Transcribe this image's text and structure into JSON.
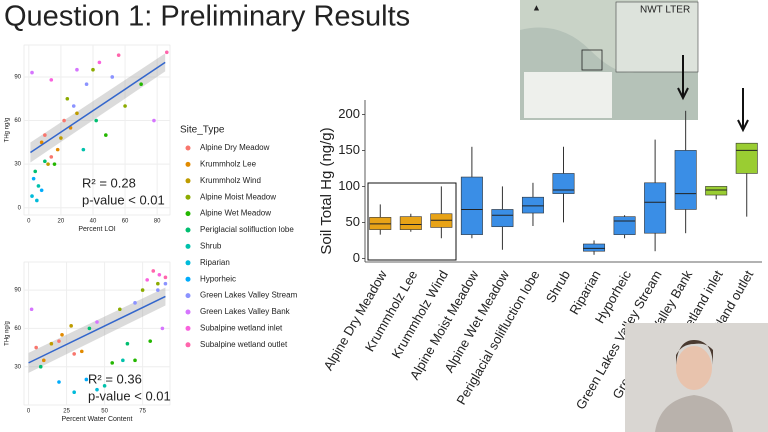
{
  "title": "Question 1: Preliminary Results",
  "map_title": "NWT LTER",
  "chart_data": [
    {
      "type": "scatter",
      "xlabel": "Percent LOI",
      "ylabel": "THg ng/g",
      "xlim": [
        -3,
        88
      ],
      "xticks": [
        0,
        20,
        40,
        60,
        80
      ],
      "ylim": [
        -5,
        112
      ],
      "yticks": [
        0,
        30,
        60,
        90
      ],
      "annotations": [
        "R² = 0.28",
        "p-value < 0.01"
      ],
      "fit": {
        "x": [
          1,
          85
        ],
        "y": [
          38,
          100
        ]
      },
      "fit_color": "#3366cc",
      "legend_title": "Site_Type",
      "series": [
        {
          "name": "Alpine Dry Meadow",
          "color": "#f8766d",
          "x": [
            10,
            14,
            22
          ],
          "y": [
            50,
            35,
            60
          ]
        },
        {
          "name": "Krummholz Lee",
          "color": "#e18a00",
          "x": [
            8,
            18,
            26
          ],
          "y": [
            45,
            40,
            55
          ]
        },
        {
          "name": "Krummholz Wind",
          "color": "#be9c00",
          "x": [
            12,
            20,
            30
          ],
          "y": [
            30,
            48,
            65
          ]
        },
        {
          "name": "Alpine Moist Meadow",
          "color": "#8cab00",
          "x": [
            24,
            40,
            60
          ],
          "y": [
            75,
            95,
            70
          ]
        },
        {
          "name": "Alpine Wet Meadow",
          "color": "#24b700",
          "x": [
            16,
            48,
            70
          ],
          "y": [
            30,
            50,
            85
          ]
        },
        {
          "name": "Periglacial solifluction lobe",
          "color": "#00be70",
          "x": [
            4,
            10,
            42
          ],
          "y": [
            25,
            32,
            60
          ]
        },
        {
          "name": "Shrub",
          "color": "#00c1ab",
          "x": [
            6,
            34
          ],
          "y": [
            15,
            40
          ]
        },
        {
          "name": "Riparian",
          "color": "#00bbda",
          "x": [
            2,
            5
          ],
          "y": [
            8,
            5
          ]
        },
        {
          "name": "Hyporheic",
          "color": "#00acfc",
          "x": [
            3,
            8
          ],
          "y": [
            20,
            12
          ]
        },
        {
          "name": "Green Lakes Valley Stream",
          "color": "#8b93ff",
          "x": [
            28,
            36,
            52
          ],
          "y": [
            70,
            85,
            90
          ]
        },
        {
          "name": "Green Lakes Valley Bank",
          "color": "#d575fe",
          "x": [
            2,
            30,
            78
          ],
          "y": [
            93,
            95,
            60
          ]
        },
        {
          "name": "Subalpine wetland inlet",
          "color": "#f962dd",
          "x": [
            14,
            44
          ],
          "y": [
            88,
            100
          ]
        },
        {
          "name": "Subalpine wetland outlet",
          "color": "#ff65ac",
          "x": [
            56,
            86
          ],
          "y": [
            105,
            107
          ]
        }
      ]
    },
    {
      "type": "scatter",
      "xlabel": "Percent Water Content",
      "ylabel": "THg ng/g",
      "xlim": [
        -3,
        93
      ],
      "xticks": [
        0,
        25,
        50,
        75
      ],
      "ylim": [
        0,
        112
      ],
      "yticks": [
        30,
        60,
        90
      ],
      "annotations": [
        "R² = 0.36",
        "p-value < 0.01"
      ],
      "fit": {
        "x": [
          0,
          90
        ],
        "y": [
          33,
          85
        ]
      },
      "fit_color": "#3366cc",
      "series": [
        {
          "color": "#f8766d",
          "x": [
            5,
            20,
            30
          ],
          "y": [
            45,
            50,
            40
          ]
        },
        {
          "color": "#e18a00",
          "x": [
            10,
            22,
            35
          ],
          "y": [
            35,
            55,
            42
          ]
        },
        {
          "color": "#be9c00",
          "x": [
            15,
            28
          ],
          "y": [
            48,
            62
          ]
        },
        {
          "color": "#8cab00",
          "x": [
            60,
            75,
            85
          ],
          "y": [
            75,
            90,
            95
          ]
        },
        {
          "color": "#24b700",
          "x": [
            55,
            70,
            80
          ],
          "y": [
            33,
            35,
            50
          ]
        },
        {
          "color": "#00be70",
          "x": [
            8,
            40,
            65
          ],
          "y": [
            30,
            60,
            48
          ]
        },
        {
          "color": "#00c1ab",
          "x": [
            50,
            62
          ],
          "y": [
            15,
            35
          ]
        },
        {
          "color": "#00bbda",
          "x": [
            30,
            45
          ],
          "y": [
            10,
            12
          ]
        },
        {
          "color": "#00acfc",
          "x": [
            20,
            38
          ],
          "y": [
            18,
            20
          ]
        },
        {
          "color": "#8b93ff",
          "x": [
            70,
            85,
            90
          ],
          "y": [
            80,
            90,
            95
          ]
        },
        {
          "color": "#d575fe",
          "x": [
            2,
            45,
            88
          ],
          "y": [
            75,
            65,
            60
          ]
        },
        {
          "color": "#f962dd",
          "x": [
            78,
            86
          ],
          "y": [
            98,
            102
          ]
        },
        {
          "color": "#ff65ac",
          "x": [
            82,
            90
          ],
          "y": [
            105,
            100
          ]
        }
      ]
    },
    {
      "type": "box",
      "ylabel": "Soil Total Hg (ng/g)",
      "ylim": [
        -5,
        220
      ],
      "yticks": [
        0,
        50,
        100,
        150,
        200
      ],
      "categories": [
        "Alpine Dry Meadow",
        "Krummholz Lee",
        "Krummholz Wind",
        "Alpine Moist Meadow",
        "Alpine Wet Meadow",
        "Periglacial solifluction lobe",
        "Shrub",
        "Riparian",
        "Hyporheic",
        "Green Lakes Valley Stream",
        "Green Lakes Valley Bank",
        "Subalpine wetland inlet",
        "Subalpine wetland outlet"
      ],
      "boxes": [
        {
          "min": 33,
          "q1": 40,
          "median": 48,
          "q3": 57,
          "max": 75,
          "color": "#e8a317"
        },
        {
          "min": 37,
          "q1": 40,
          "median": 47,
          "q3": 58,
          "max": 62,
          "color": "#e8a317"
        },
        {
          "min": 28,
          "q1": 43,
          "median": 53,
          "q3": 62,
          "max": 100,
          "color": "#e8a317"
        },
        {
          "min": 28,
          "q1": 33,
          "median": 68,
          "q3": 113,
          "max": 155,
          "color": "#3a8ee6"
        },
        {
          "min": 12,
          "q1": 44,
          "median": 60,
          "q3": 68,
          "max": 100,
          "color": "#3a8ee6"
        },
        {
          "min": 45,
          "q1": 63,
          "median": 73,
          "q3": 85,
          "max": 105,
          "color": "#3a8ee6"
        },
        {
          "min": 50,
          "q1": 90,
          "median": 95,
          "q3": 118,
          "max": 155,
          "color": "#3a8ee6"
        },
        {
          "min": 5,
          "q1": 10,
          "median": 14,
          "q3": 20,
          "max": 25,
          "color": "#3a8ee6"
        },
        {
          "min": 28,
          "q1": 33,
          "median": 52,
          "q3": 58,
          "max": 60,
          "color": "#3a8ee6"
        },
        {
          "min": 10,
          "q1": 35,
          "median": 78,
          "q3": 105,
          "max": 165,
          "color": "#3a8ee6"
        },
        {
          "min": 35,
          "q1": 68,
          "median": 90,
          "q3": 150,
          "max": 205,
          "color": "#3a8ee6"
        },
        {
          "min": 82,
          "q1": 88,
          "median": 95,
          "q3": 100,
          "max": 100,
          "color": "#9acd32"
        },
        {
          "min": 58,
          "q1": 118,
          "median": 150,
          "q3": 160,
          "max": 160,
          "color": "#9acd32"
        }
      ]
    }
  ]
}
